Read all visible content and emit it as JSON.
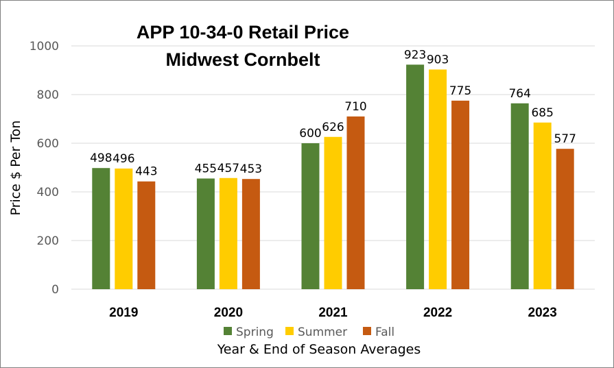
{
  "chart_data": {
    "type": "bar",
    "title_lines": [
      "APP 10-34-0 Retail Price",
      "Midwest Cornbelt"
    ],
    "xlabel": "Year & End of Season Averages",
    "ylabel": "Price $ Per Ton",
    "ylim": [
      0,
      1000
    ],
    "yticks": [
      0,
      200,
      400,
      600,
      800,
      1000
    ],
    "grid": true,
    "legend_position": "bottom",
    "categories": [
      "2019",
      "2020",
      "2021",
      "2022",
      "2023"
    ],
    "series": [
      {
        "name": "Spring",
        "color": "#548235",
        "values": [
          498,
          455,
          600,
          923,
          764
        ]
      },
      {
        "name": "Summer",
        "color": "#ffcc00",
        "values": [
          496,
          457,
          626,
          903,
          685
        ]
      },
      {
        "name": "Fall",
        "color": "#c55a11",
        "values": [
          443,
          453,
          710,
          775,
          577
        ]
      }
    ]
  }
}
